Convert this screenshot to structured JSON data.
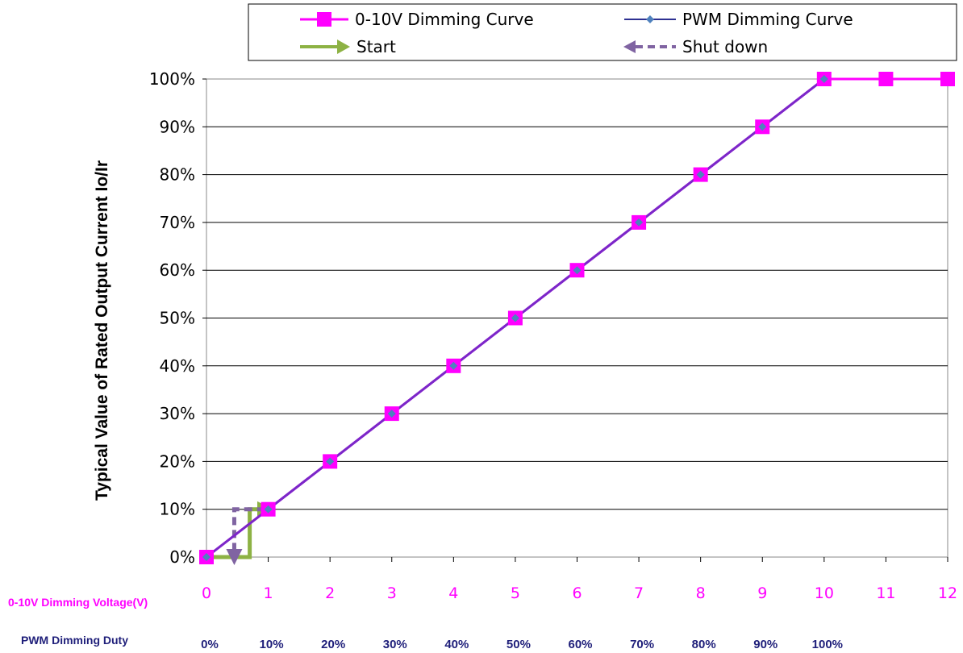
{
  "chart_data": {
    "type": "line",
    "ylabel": "Typical Value of Rated Output Current Io/Ir",
    "yticks": [
      "0%",
      "10%",
      "20%",
      "30%",
      "40%",
      "50%",
      "60%",
      "70%",
      "80%",
      "90%",
      "100%"
    ],
    "ylim": [
      0,
      100
    ],
    "xlim": [
      0,
      12
    ],
    "grid": true,
    "legend_position": "top",
    "x_voltage": {
      "label": "0-10V Dimming Voltage(V)",
      "ticks": [
        "0",
        "1",
        "2",
        "3",
        "4",
        "5",
        "6",
        "7",
        "8",
        "9",
        "10",
        "11",
        "12"
      ],
      "color": "#ff00ff"
    },
    "x_duty": {
      "label": "PWM Dimming Duty",
      "ticks": [
        "0%",
        "10%",
        "20%",
        "30%",
        "40%",
        "50%",
        "60%",
        "70%",
        "80%",
        "90%",
        "100%"
      ],
      "color": "#1f1f7a"
    },
    "series": [
      {
        "name": "0-10V Dimming Curve",
        "color": "#ff00ff",
        "marker": "square",
        "x": [
          0,
          1,
          2,
          3,
          4,
          5,
          6,
          7,
          8,
          9,
          10,
          11,
          12
        ],
        "y": [
          0,
          10,
          20,
          30,
          40,
          50,
          60,
          70,
          80,
          90,
          100,
          100,
          100
        ]
      },
      {
        "name": "PWM Dimming Curve",
        "color": "#2e3192",
        "marker": "diamond",
        "x": [
          0,
          1,
          2,
          3,
          4,
          5,
          6,
          7,
          8,
          9,
          10
        ],
        "y": [
          0,
          10,
          20,
          30,
          40,
          50,
          60,
          70,
          80,
          90,
          100
        ]
      }
    ],
    "annotations": [
      {
        "name": "Start",
        "color": "#8db244",
        "style": "solid-arrow",
        "path": [
          [
            0,
            0
          ],
          [
            0.7,
            0
          ],
          [
            0.7,
            10
          ],
          [
            0.95,
            10
          ]
        ]
      },
      {
        "name": "Shut down",
        "color": "#8064a2",
        "style": "dashed-arrow",
        "path": [
          [
            0.95,
            10
          ],
          [
            0.45,
            10
          ],
          [
            0.45,
            0
          ]
        ]
      }
    ],
    "combined_line_color": "#7a28c8"
  },
  "legend": {
    "items": [
      {
        "label": "0-10V Dimming Curve"
      },
      {
        "label": "PWM Dimming Curve"
      },
      {
        "label": "Start"
      },
      {
        "label": "Shut down"
      }
    ]
  }
}
